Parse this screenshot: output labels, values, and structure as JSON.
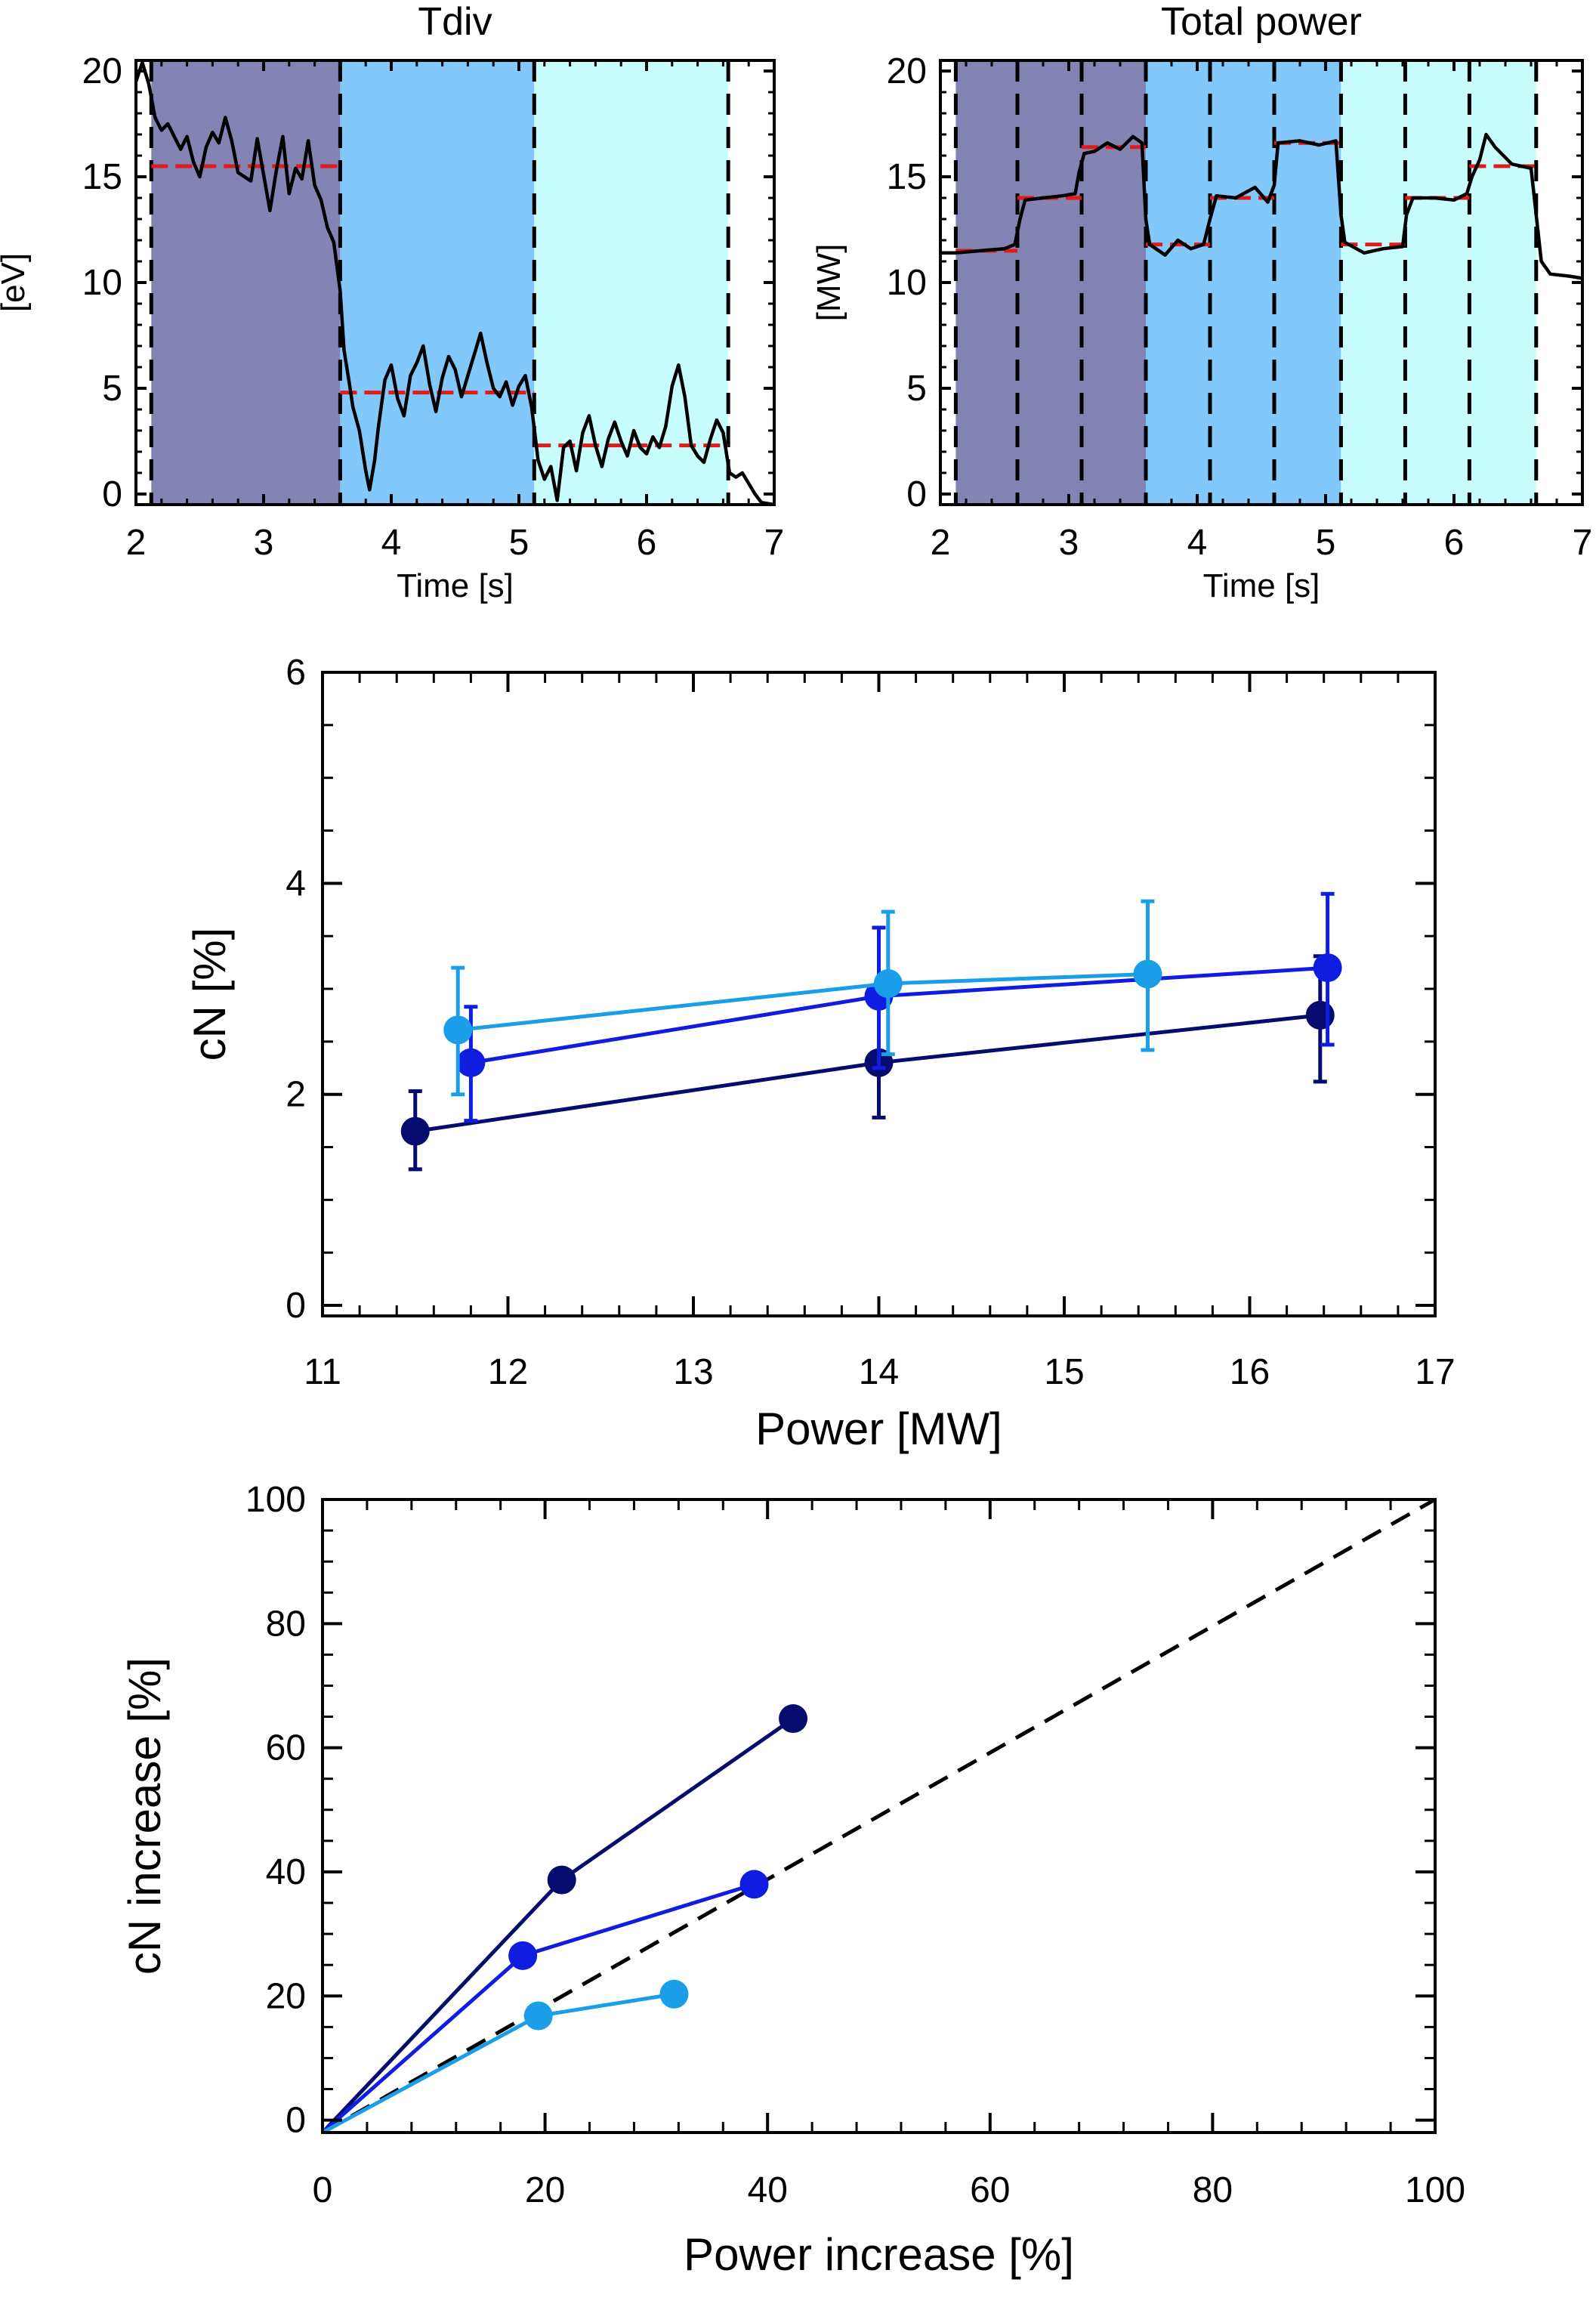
{
  "chart_data": [
    {
      "id": "tdiv",
      "type": "line",
      "title": "Tdiv",
      "xlabel": "Time [s]",
      "ylabel": "[eV]",
      "xlim": [
        2,
        7
      ],
      "ylim": [
        -0.5,
        20.5
      ],
      "xticks": [
        2,
        3,
        4,
        5,
        6,
        7
      ],
      "yticks": [
        0,
        5,
        10,
        15,
        20
      ],
      "bands": [
        {
          "x0": 2.12,
          "x1": 3.6,
          "color": "#8484b4"
        },
        {
          "x0": 3.6,
          "x1": 5.12,
          "color": "#82c8fb"
        },
        {
          "x0": 5.12,
          "x1": 6.64,
          "color": "#c7fdfc"
        }
      ],
      "vlines": [
        2.12,
        3.6,
        5.12,
        6.64
      ],
      "levels": [
        {
          "x0": 2.12,
          "x1": 3.6,
          "y": 15.5
        },
        {
          "x0": 3.6,
          "x1": 5.12,
          "y": 4.8
        },
        {
          "x0": 5.12,
          "x1": 6.64,
          "y": 2.3
        }
      ],
      "trace": [
        [
          2.0,
          19.5
        ],
        [
          2.05,
          20.4
        ],
        [
          2.1,
          19.4
        ],
        [
          2.15,
          17.8
        ],
        [
          2.2,
          17.2
        ],
        [
          2.25,
          17.5
        ],
        [
          2.3,
          16.9
        ],
        [
          2.35,
          16.3
        ],
        [
          2.4,
          16.9
        ],
        [
          2.45,
          15.7
        ],
        [
          2.5,
          15.0
        ],
        [
          2.55,
          16.4
        ],
        [
          2.6,
          17.1
        ],
        [
          2.65,
          16.6
        ],
        [
          2.7,
          17.8
        ],
        [
          2.75,
          16.7
        ],
        [
          2.8,
          15.2
        ],
        [
          2.85,
          15.0
        ],
        [
          2.9,
          14.8
        ],
        [
          2.95,
          16.8
        ],
        [
          3.0,
          15.1
        ],
        [
          3.05,
          13.4
        ],
        [
          3.1,
          15.3
        ],
        [
          3.15,
          16.9
        ],
        [
          3.2,
          14.2
        ],
        [
          3.25,
          15.4
        ],
        [
          3.3,
          14.9
        ],
        [
          3.35,
          16.7
        ],
        [
          3.4,
          14.6
        ],
        [
          3.45,
          13.9
        ],
        [
          3.5,
          12.6
        ],
        [
          3.55,
          11.9
        ],
        [
          3.6,
          9.6
        ],
        [
          3.63,
          6.8
        ],
        [
          3.67,
          5.3
        ],
        [
          3.7,
          4.1
        ],
        [
          3.75,
          3.0
        ],
        [
          3.8,
          1.1
        ],
        [
          3.83,
          0.2
        ],
        [
          3.87,
          1.6
        ],
        [
          3.9,
          3.2
        ],
        [
          3.95,
          5.4
        ],
        [
          4.0,
          6.1
        ],
        [
          4.05,
          4.5
        ],
        [
          4.1,
          3.7
        ],
        [
          4.15,
          5.6
        ],
        [
          4.2,
          6.2
        ],
        [
          4.25,
          7.0
        ],
        [
          4.3,
          5.2
        ],
        [
          4.35,
          3.9
        ],
        [
          4.4,
          5.5
        ],
        [
          4.45,
          6.5
        ],
        [
          4.5,
          5.9
        ],
        [
          4.55,
          4.6
        ],
        [
          4.6,
          5.6
        ],
        [
          4.65,
          6.6
        ],
        [
          4.7,
          7.6
        ],
        [
          4.75,
          6.2
        ],
        [
          4.8,
          5.0
        ],
        [
          4.85,
          4.6
        ],
        [
          4.9,
          5.3
        ],
        [
          4.95,
          4.2
        ],
        [
          5.0,
          5.1
        ],
        [
          5.05,
          5.6
        ],
        [
          5.1,
          4.1
        ],
        [
          5.15,
          1.6
        ],
        [
          5.2,
          0.7
        ],
        [
          5.25,
          1.3
        ],
        [
          5.3,
          -0.3
        ],
        [
          5.35,
          2.2
        ],
        [
          5.4,
          2.5
        ],
        [
          5.45,
          1.1
        ],
        [
          5.5,
          2.9
        ],
        [
          5.55,
          3.7
        ],
        [
          5.6,
          2.3
        ],
        [
          5.65,
          1.3
        ],
        [
          5.7,
          2.6
        ],
        [
          5.75,
          3.4
        ],
        [
          5.8,
          2.5
        ],
        [
          5.85,
          1.8
        ],
        [
          5.9,
          3.0
        ],
        [
          5.95,
          2.2
        ],
        [
          6.0,
          1.9
        ],
        [
          6.05,
          2.7
        ],
        [
          6.1,
          2.2
        ],
        [
          6.15,
          3.2
        ],
        [
          6.2,
          5.1
        ],
        [
          6.25,
          6.1
        ],
        [
          6.3,
          4.6
        ],
        [
          6.35,
          2.3
        ],
        [
          6.4,
          1.8
        ],
        [
          6.45,
          1.5
        ],
        [
          6.5,
          2.6
        ],
        [
          6.55,
          3.5
        ],
        [
          6.6,
          2.9
        ],
        [
          6.65,
          1.0
        ],
        [
          6.7,
          0.8
        ],
        [
          6.75,
          1.0
        ],
        [
          6.8,
          0.5
        ],
        [
          6.85,
          0.0
        ],
        [
          6.9,
          -0.4
        ],
        [
          7.0,
          -0.5
        ]
      ]
    },
    {
      "id": "total-power",
      "type": "line",
      "title": "Total power",
      "xlabel": "Time [s]",
      "ylabel": "[MW]",
      "xlim": [
        2,
        7
      ],
      "ylim": [
        -0.5,
        20.5
      ],
      "xticks": [
        2,
        3,
        4,
        5,
        6,
        7
      ],
      "yticks": [
        0,
        5,
        10,
        15,
        20
      ],
      "bands": [
        {
          "x0": 2.12,
          "x1": 3.6,
          "color": "#8484b4"
        },
        {
          "x0": 3.6,
          "x1": 5.12,
          "color": "#82c8fb"
        },
        {
          "x0": 5.12,
          "x1": 6.64,
          "color": "#c7fdfc"
        }
      ],
      "vlines": [
        2.12,
        2.6,
        3.1,
        3.6,
        4.1,
        4.6,
        5.12,
        5.62,
        6.12,
        6.64
      ],
      "levels": [
        {
          "x0": 2.12,
          "x1": 2.6,
          "y": 11.5
        },
        {
          "x0": 2.6,
          "x1": 3.1,
          "y": 14.0
        },
        {
          "x0": 3.1,
          "x1": 3.6,
          "y": 16.4
        },
        {
          "x0": 3.6,
          "x1": 4.1,
          "y": 11.8
        },
        {
          "x0": 4.1,
          "x1": 4.6,
          "y": 14.0
        },
        {
          "x0": 4.6,
          "x1": 5.12,
          "y": 16.6
        },
        {
          "x0": 5.12,
          "x1": 5.62,
          "y": 11.8
        },
        {
          "x0": 5.62,
          "x1": 6.12,
          "y": 14.0
        },
        {
          "x0": 6.12,
          "x1": 6.64,
          "y": 15.5
        }
      ],
      "trace": [
        [
          2.0,
          11.4
        ],
        [
          2.12,
          11.4
        ],
        [
          2.3,
          11.5
        ],
        [
          2.5,
          11.6
        ],
        [
          2.58,
          11.8
        ],
        [
          2.62,
          13.0
        ],
        [
          2.66,
          13.9
        ],
        [
          2.8,
          14.0
        ],
        [
          2.95,
          14.1
        ],
        [
          3.05,
          14.2
        ],
        [
          3.08,
          15.2
        ],
        [
          3.12,
          16.1
        ],
        [
          3.2,
          16.2
        ],
        [
          3.3,
          16.6
        ],
        [
          3.4,
          16.3
        ],
        [
          3.5,
          16.9
        ],
        [
          3.57,
          16.6
        ],
        [
          3.6,
          13.0
        ],
        [
          3.63,
          11.8
        ],
        [
          3.75,
          11.3
        ],
        [
          3.85,
          12.0
        ],
        [
          3.95,
          11.6
        ],
        [
          4.05,
          11.8
        ],
        [
          4.1,
          13.0
        ],
        [
          4.15,
          14.1
        ],
        [
          4.3,
          14.0
        ],
        [
          4.45,
          14.5
        ],
        [
          4.55,
          13.8
        ],
        [
          4.6,
          14.6
        ],
        [
          4.63,
          16.6
        ],
        [
          4.8,
          16.7
        ],
        [
          4.95,
          16.5
        ],
        [
          5.08,
          16.7
        ],
        [
          5.12,
          13.2
        ],
        [
          5.15,
          11.9
        ],
        [
          5.3,
          11.4
        ],
        [
          5.45,
          11.6
        ],
        [
          5.6,
          11.7
        ],
        [
          5.63,
          13.2
        ],
        [
          5.68,
          14.0
        ],
        [
          5.85,
          14.0
        ],
        [
          6.0,
          13.9
        ],
        [
          6.1,
          14.2
        ],
        [
          6.14,
          15.0
        ],
        [
          6.2,
          15.8
        ],
        [
          6.25,
          17.0
        ],
        [
          6.32,
          16.4
        ],
        [
          6.45,
          15.6
        ],
        [
          6.6,
          15.4
        ],
        [
          6.64,
          13.2
        ],
        [
          6.68,
          11.0
        ],
        [
          6.75,
          10.4
        ],
        [
          6.9,
          10.3
        ],
        [
          7.0,
          10.2
        ]
      ]
    },
    {
      "id": "cn-vs-power",
      "type": "scatter",
      "title": "",
      "xlabel": "Power [MW]",
      "ylabel": "cN [%]",
      "xlim": [
        11,
        17
      ],
      "ylim": [
        -0.1,
        6
      ],
      "xticks": [
        11,
        12,
        13,
        14,
        15,
        16,
        17
      ],
      "yticks": [
        0,
        2,
        4,
        6
      ],
      "series": [
        {
          "color": "#060c6e",
          "points": [
            [
              11.5,
              1.65,
              1.29,
              2.03
            ],
            [
              14.0,
              2.3,
              1.78,
              3.58
            ],
            [
              16.38,
              2.75,
              2.12,
              3.31
            ]
          ]
        },
        {
          "color": "#101ce0",
          "points": [
            [
              11.8,
              2.3,
              1.75,
              2.83
            ],
            [
              14.0,
              2.93,
              2.25,
              3.58
            ],
            [
              16.42,
              3.2,
              2.47,
              3.9
            ]
          ]
        },
        {
          "color": "#1a9ee8",
          "points": [
            [
              11.73,
              2.61,
              2.0,
              3.2
            ],
            [
              14.05,
              3.05,
              2.38,
              3.73
            ],
            [
              15.45,
              3.14,
              2.42,
              3.83
            ]
          ]
        }
      ]
    },
    {
      "id": "cn-increase-vs-power-increase",
      "type": "scatter",
      "title": "",
      "xlabel": "Power increase [%]",
      "ylabel": "cN increase [%]",
      "xlim": [
        0,
        100
      ],
      "ylim": [
        -2,
        100
      ],
      "xticks": [
        0,
        20,
        40,
        60,
        80,
        100
      ],
      "yticks": [
        0,
        20,
        40,
        60,
        80,
        100
      ],
      "diagonal": [
        [
          0,
          -2
        ],
        [
          100,
          100
        ]
      ],
      "series": [
        {
          "color": "#060c6e",
          "points": [
            [
              0,
              -2
            ],
            [
              21.5,
              38.7
            ],
            [
              42.3,
              64.7
            ]
          ]
        },
        {
          "color": "#101ce0",
          "points": [
            [
              0,
              -2
            ],
            [
              18.0,
              26.5
            ],
            [
              38.8,
              38.0
            ]
          ]
        },
        {
          "color": "#1a9ee8",
          "points": [
            [
              0,
              -2
            ],
            [
              19.4,
              16.8
            ],
            [
              31.6,
              20.3
            ]
          ]
        }
      ]
    }
  ]
}
